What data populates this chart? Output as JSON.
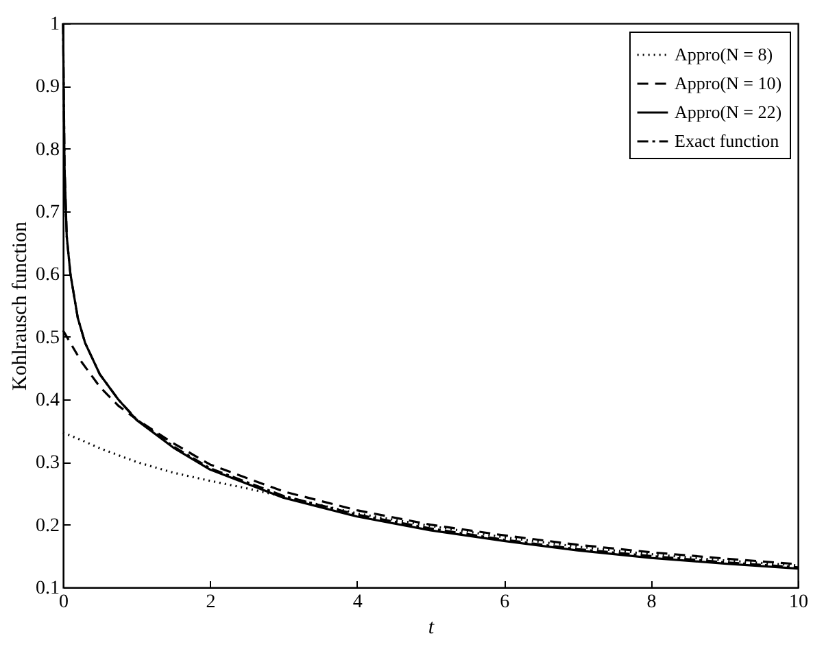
{
  "chart_data": {
    "type": "line",
    "xlabel": "t",
    "ylabel": "Kohlrausch function",
    "xlim": [
      0,
      10
    ],
    "ylim": [
      0.1,
      1
    ],
    "xticks": [
      0,
      2,
      4,
      6,
      8,
      10
    ],
    "yticks": [
      0.1,
      0.2,
      0.3,
      0.4,
      0.5,
      0.6,
      0.7,
      0.8,
      0.9,
      1
    ],
    "grid": false,
    "legend": "top right",
    "marker": "none",
    "series": [
      {
        "name": "Appro(N = 8)",
        "color": "#000000",
        "line_style": "dotted",
        "x": [
          0,
          0.25,
          0.5,
          1,
          1.5,
          2,
          2.5,
          3,
          4,
          5,
          6,
          7,
          8,
          9,
          10
        ],
        "values": [
          0.347,
          0.335,
          0.322,
          0.3,
          0.283,
          0.27,
          0.258,
          0.245,
          0.218,
          0.198,
          0.18,
          0.165,
          0.153,
          0.143,
          0.135
        ]
      },
      {
        "name": "Appro(N = 10)",
        "color": "#000000",
        "line_style": "dashed",
        "x": [
          0,
          0.1,
          0.25,
          0.5,
          0.75,
          1,
          1.5,
          2,
          3,
          4,
          5,
          6,
          7,
          8,
          9,
          10
        ],
        "values": [
          0.51,
          0.49,
          0.46,
          0.42,
          0.39,
          0.368,
          0.33,
          0.296,
          0.253,
          0.223,
          0.2,
          0.183,
          0.168,
          0.156,
          0.146,
          0.137
        ]
      },
      {
        "name": "Appro(N = 22)",
        "color": "#000000",
        "line_style": "solid",
        "x": [
          0,
          0.02,
          0.05,
          0.1,
          0.2,
          0.3,
          0.5,
          0.75,
          1,
          1.5,
          2,
          3,
          4,
          5,
          6,
          7,
          8,
          9,
          10
        ],
        "values": [
          1,
          0.77,
          0.66,
          0.6,
          0.53,
          0.49,
          0.44,
          0.4,
          0.367,
          0.323,
          0.288,
          0.243,
          0.213,
          0.191,
          0.174,
          0.159,
          0.147,
          0.138,
          0.13
        ]
      },
      {
        "name": "Exact function",
        "color": "#000000",
        "line_style": "dashdot",
        "x": [
          0,
          0.02,
          0.05,
          0.1,
          0.2,
          0.3,
          0.5,
          0.75,
          1,
          1.5,
          2,
          3,
          4,
          5,
          6,
          7,
          8,
          9,
          10
        ],
        "values": [
          1,
          0.77,
          0.66,
          0.6,
          0.53,
          0.49,
          0.44,
          0.4,
          0.368,
          0.325,
          0.29,
          0.246,
          0.216,
          0.194,
          0.176,
          0.161,
          0.15,
          0.14,
          0.132
        ]
      }
    ]
  }
}
